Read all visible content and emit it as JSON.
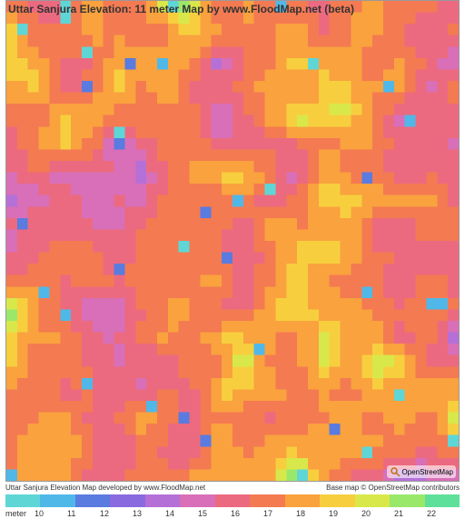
{
  "title": "Uttar Sanjura Elevation: 11 meter Map by www.FloodMap.net (beta)",
  "credits": {
    "left": "Uttar Sanjura Elevation Map developed by www.FloodMap.net",
    "right": "Base map © OpenStreetMap contributors"
  },
  "osm_label": "OpenStreetMap",
  "legend": {
    "unit": "meter",
    "values": [
      "10",
      "11",
      "12",
      "13",
      "14",
      "15",
      "16",
      "17",
      "18",
      "19",
      "20",
      "21",
      "22"
    ],
    "colors": [
      "#5fd6d6",
      "#50b8e8",
      "#5a7be0",
      "#8a6adf",
      "#b570d8",
      "#d86fb8",
      "#ec6a7f",
      "#f47a52",
      "#f9a23e",
      "#f7cf3e",
      "#d8e84a",
      "#9ae86a",
      "#5fe09a"
    ]
  },
  "heatmap": {
    "type": "heatmap",
    "grid_size": 42,
    "background_color": "#ffffff",
    "palette_source": "legend.colors",
    "value_min": 10,
    "value_max": 22,
    "note": "Cell colors sampled from legend palette; values estimated from pixel colors (precision ±1m).",
    "title_fontsize": 12,
    "title_color": "#333333",
    "border_color": "#999999",
    "credits_fontsize": 8,
    "legend_label_fontsize": 9,
    "seed": 73219
  }
}
